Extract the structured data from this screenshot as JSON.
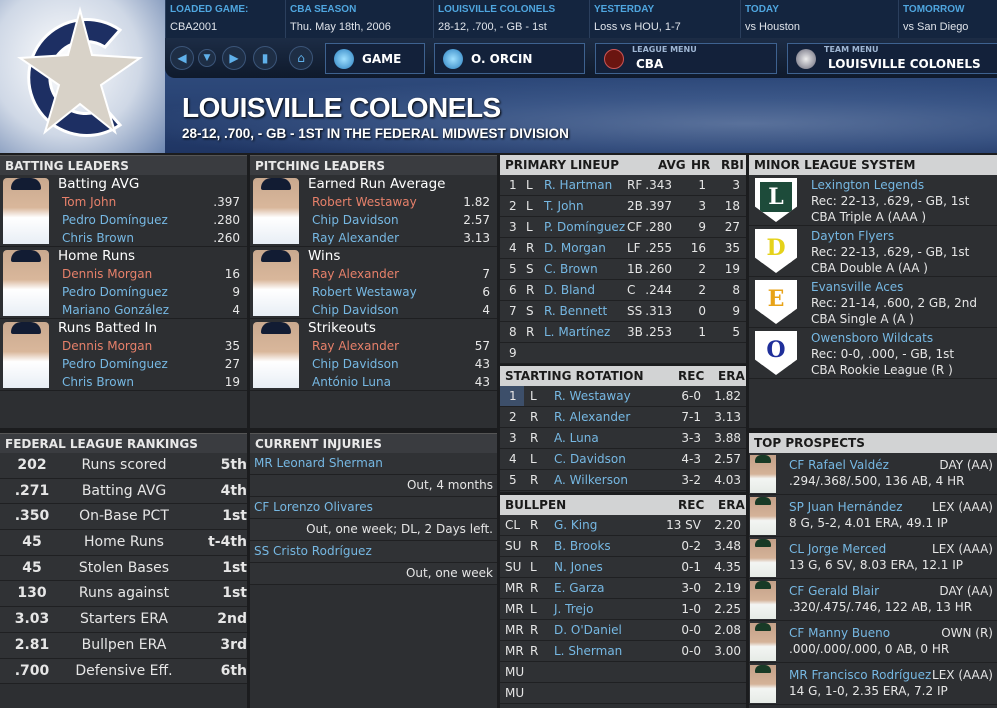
{
  "colors": {
    "accent": "#76b8e3",
    "leader": "#e6806a",
    "header_dark": "#3a3c40",
    "header_light": "#d2d3d4"
  },
  "topbar": [
    {
      "label": "LOADED GAME:",
      "value": "CBA2001"
    },
    {
      "label": "CBA SEASON",
      "value": "Thu. May 18th, 2006"
    },
    {
      "label": "LOUISVILLE COLONELS",
      "value": "28-12, .700, - GB - 1st"
    },
    {
      "label": "YESTERDAY",
      "value": "Loss vs HOU, 1-7"
    },
    {
      "label": "TODAY",
      "value": "vs Houston"
    },
    {
      "label": "TOMORROW",
      "value": "vs San Diego"
    }
  ],
  "nav": {
    "game": "GAME",
    "manager": "O. ORCIN",
    "league_label": "LEAGUE MENU",
    "league": "CBA",
    "team_label": "TEAM MENU",
    "team": "LOUISVILLE COLONELS",
    "icons": [
      "back-arrow-icon",
      "dropdown-icon",
      "forward-arrow-icon",
      "bookmark-icon",
      "home-icon"
    ]
  },
  "header": {
    "title": "LOUISVILLE COLONELS",
    "subtitle": "28-12, .700, - GB - 1ST IN THE FEDERAL MIDWEST DIVISION"
  },
  "batting_leaders": {
    "title": "BATTING LEADERS",
    "groups": [
      {
        "cat": "Batting AVG",
        "rows": [
          [
            "Tom John",
            ".397"
          ],
          [
            "Pedro Domínguez",
            ".280"
          ],
          [
            "Chris Brown",
            ".260"
          ]
        ]
      },
      {
        "cat": "Home Runs",
        "rows": [
          [
            "Dennis Morgan",
            "16"
          ],
          [
            "Pedro Domínguez",
            "9"
          ],
          [
            "Mariano González",
            "4"
          ]
        ]
      },
      {
        "cat": "Runs Batted In",
        "rows": [
          [
            "Dennis Morgan",
            "35"
          ],
          [
            "Pedro Domínguez",
            "27"
          ],
          [
            "Chris Brown",
            "19"
          ]
        ]
      }
    ]
  },
  "pitching_leaders": {
    "title": "PITCHING LEADERS",
    "groups": [
      {
        "cat": "Earned Run Average",
        "rows": [
          [
            "Robert Westaway",
            "1.82"
          ],
          [
            "Chip Davidson",
            "2.57"
          ],
          [
            "Ray Alexander",
            "3.13"
          ]
        ]
      },
      {
        "cat": "Wins",
        "rows": [
          [
            "Ray Alexander",
            "7"
          ],
          [
            "Robert Westaway",
            "6"
          ],
          [
            "Chip Davidson",
            "4"
          ]
        ]
      },
      {
        "cat": "Strikeouts",
        "rows": [
          [
            "Ray Alexander",
            "57"
          ],
          [
            "Chip Davidson",
            "43"
          ],
          [
            "António Luna",
            "43"
          ]
        ]
      }
    ]
  },
  "lineup": {
    "title": "PRIMARY LINEUP",
    "cols": [
      "AVG",
      "HR",
      "RBI"
    ],
    "rows": [
      [
        "1",
        "L",
        "R. Hartman",
        "RF",
        ".343",
        "1",
        "3"
      ],
      [
        "2",
        "L",
        "T. John",
        "2B",
        ".397",
        "3",
        "18"
      ],
      [
        "3",
        "L",
        "P. Domínguez",
        "CF",
        ".280",
        "9",
        "27"
      ],
      [
        "4",
        "R",
        "D. Morgan",
        "LF",
        ".255",
        "16",
        "35"
      ],
      [
        "5",
        "S",
        "C. Brown",
        "1B",
        ".260",
        "2",
        "19"
      ],
      [
        "6",
        "R",
        "D. Bland",
        "C",
        ".244",
        "2",
        "8"
      ],
      [
        "7",
        "S",
        "R. Bennett",
        "SS",
        ".313",
        "0",
        "9"
      ],
      [
        "8",
        "R",
        "L. Martínez",
        "3B",
        ".253",
        "1",
        "5"
      ],
      [
        "9",
        "",
        "",
        "",
        "",
        "",
        ""
      ]
    ]
  },
  "rotation": {
    "title": "STARTING ROTATION",
    "cols": [
      "REC",
      "ERA"
    ],
    "rows": [
      [
        "1",
        "L",
        "R. Westaway",
        "6-0",
        "1.82"
      ],
      [
        "2",
        "R",
        "R. Alexander",
        "7-1",
        "3.13"
      ],
      [
        "3",
        "R",
        "A. Luna",
        "3-3",
        "3.88"
      ],
      [
        "4",
        "L",
        "C. Davidson",
        "4-3",
        "2.57"
      ],
      [
        "5",
        "R",
        "A. Wilkerson",
        "3-2",
        "4.03"
      ]
    ]
  },
  "bullpen": {
    "title": "BULLPEN",
    "cols": [
      "REC",
      "ERA"
    ],
    "rows": [
      [
        "CL",
        "R",
        "G. King",
        "13 SV",
        "2.20"
      ],
      [
        "SU",
        "R",
        "B. Brooks",
        "0-2",
        "3.48"
      ],
      [
        "SU",
        "L",
        "N. Jones",
        "0-1",
        "4.35"
      ],
      [
        "MR",
        "R",
        "E. Garza",
        "3-0",
        "2.19"
      ],
      [
        "MR",
        "L",
        "J. Trejo",
        "1-0",
        "2.25"
      ],
      [
        "MR",
        "R",
        "D. O'Daniel",
        "0-0",
        "2.08"
      ],
      [
        "MR",
        "R",
        "L. Sherman",
        "0-0",
        "3.00"
      ],
      [
        "MU",
        "",
        "",
        "",
        ""
      ],
      [
        "MU",
        "",
        "",
        "",
        ""
      ]
    ]
  },
  "minors": {
    "title": "MINOR LEAGUE SYSTEM",
    "teams": [
      {
        "name": "Lexington Legends",
        "rec": "Rec: 22-13, .629, - GB, 1st",
        "level": "CBA Triple A (AAA )",
        "letter": "L",
        "color": "#1d4b3a"
      },
      {
        "name": "Dayton Flyers",
        "rec": "Rec: 22-13, .629, - GB, 1st",
        "level": "CBA Double A (AA )",
        "letter": "D",
        "color": "#e5d21a"
      },
      {
        "name": "Evansville Aces",
        "rec": "Rec: 21-14, .600, 2 GB, 2nd",
        "level": "CBA Single A (A )",
        "letter": "E",
        "color": "#e8a318"
      },
      {
        "name": "Owensboro Wildcats",
        "rec": "Rec: 0-0, .000, - GB, 1st",
        "level": "CBA Rookie League (R )",
        "letter": "O",
        "color": "#1f2f9a"
      }
    ]
  },
  "rankings": {
    "title": "FEDERAL LEAGUE RANKINGS",
    "rows": [
      [
        "202",
        "Runs scored",
        "5th"
      ],
      [
        ".271",
        "Batting AVG",
        "4th"
      ],
      [
        ".350",
        "On-Base PCT",
        "1st"
      ],
      [
        "45",
        "Home Runs",
        "t-4th"
      ],
      [
        "45",
        "Stolen Bases",
        "1st"
      ],
      [
        "130",
        "Runs against",
        "1st"
      ],
      [
        "3.03",
        "Starters ERA",
        "2nd"
      ],
      [
        "2.81",
        "Bullpen ERA",
        "3rd"
      ],
      [
        ".700",
        "Defensive Eff.",
        "6th"
      ]
    ]
  },
  "injuries": {
    "title": "CURRENT INJURIES",
    "rows": [
      {
        "player": "MR Leonard Sherman",
        "status": "Out, 4 months"
      },
      {
        "player": "CF Lorenzo Olivares",
        "status": "Out, one week; DL, 2 Days left."
      },
      {
        "player": "SS Cristo Rodríguez",
        "status": "Out, one week"
      }
    ]
  },
  "prospects": {
    "title": "TOP PROSPECTS",
    "rows": [
      {
        "name": "CF Rafael Valdéz",
        "team": "DAY (AA)",
        "line": ".294/.368/.500, 136 AB, 4 HR"
      },
      {
        "name": "SP Juan Hernández",
        "team": "LEX (AAA)",
        "line": "8 G, 5-2, 4.01 ERA, 49.1 IP"
      },
      {
        "name": "CL Jorge Merced",
        "team": "LEX (AAA)",
        "line": "13 G, 6 SV, 8.03 ERA, 12.1 IP"
      },
      {
        "name": "CF Gerald Blair",
        "team": "DAY (AA)",
        "line": ".320/.475/.746, 122 AB, 13 HR"
      },
      {
        "name": "CF Manny Bueno",
        "team": "OWN (R)",
        "line": ".000/.000/.000, 0 AB, 0 HR"
      },
      {
        "name": "MR Francisco Rodríguez",
        "team": "LEX (AAA)",
        "line": "14 G, 1-0, 2.35 ERA, 7.2 IP"
      }
    ]
  }
}
